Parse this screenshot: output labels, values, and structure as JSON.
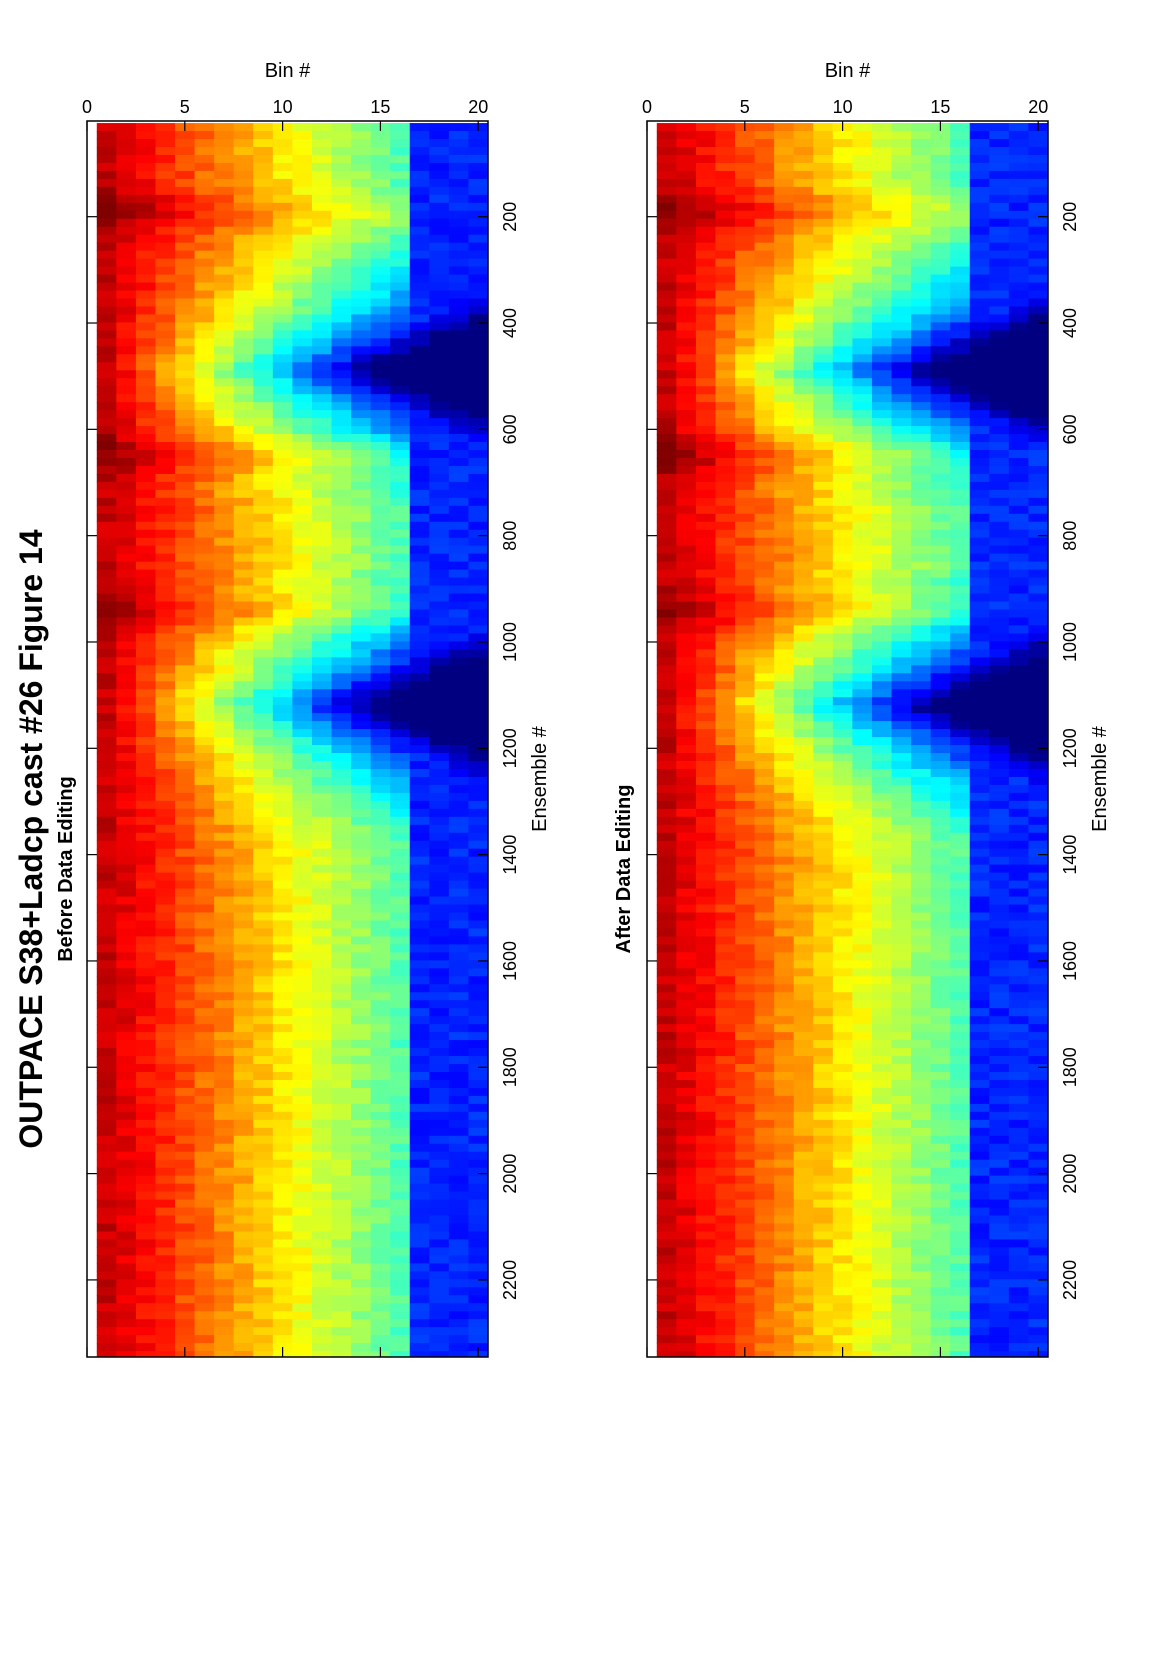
{
  "figure": {
    "title": "OUTPACE S38+Ladcp cast #26  Figure 14"
  },
  "chart_data": [
    {
      "type": "heatmap",
      "title": "Before Data Editing",
      "xlabel": "Ensemble #",
      "ylabel": "Bin #",
      "xlim": [
        20,
        2345
      ],
      "ylim": [
        0,
        20.5
      ],
      "y_reversed": true,
      "xticks": [
        200,
        400,
        600,
        800,
        1000,
        1200,
        1400,
        1600,
        1800,
        2000,
        2200
      ],
      "xtick_labels": [
        "200",
        "400",
        "600",
        "800",
        "1000",
        "1200",
        "1400",
        "1600",
        "1800",
        "2000",
        "2200"
      ],
      "yticks": [
        0,
        5,
        10,
        15,
        20
      ],
      "ytick_labels": [
        "0",
        "5",
        "10",
        "15",
        "20"
      ],
      "bins": [
        1,
        20
      ],
      "colormap": "jet",
      "grid": false,
      "features": {
        "high_intensity_columns": [
          190,
          650,
          940
        ],
        "convergence_minima": [
          490,
          1120
        ],
        "noisy_bins_start": 16
      }
    },
    {
      "type": "heatmap",
      "title": "After Data Editing",
      "xlabel": "Ensemble #",
      "ylabel": "Bin #",
      "xlim": [
        20,
        2345
      ],
      "ylim": [
        0,
        20.5
      ],
      "y_reversed": true,
      "xticks": [
        200,
        400,
        600,
        800,
        1000,
        1200,
        1400,
        1600,
        1800,
        2000,
        2200
      ],
      "xtick_labels": [
        "200",
        "400",
        "600",
        "800",
        "1000",
        "1200",
        "1400",
        "1600",
        "1800",
        "2000",
        "2200"
      ],
      "yticks": [
        0,
        5,
        10,
        15,
        20
      ],
      "ytick_labels": [
        "0",
        "5",
        "10",
        "15",
        "20"
      ],
      "bins": [
        1,
        20
      ],
      "colormap": "jet",
      "grid": false,
      "features": {
        "high_intensity_columns": [
          190,
          650,
          940
        ],
        "convergence_minima": [
          490,
          1120
        ],
        "noisy_bins_start": 16
      }
    }
  ]
}
